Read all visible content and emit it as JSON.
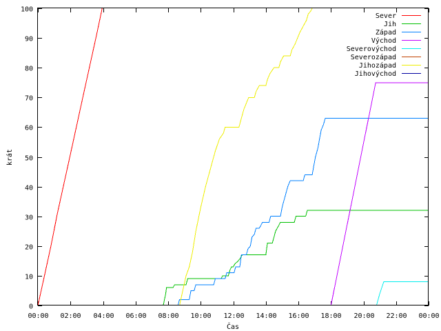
{
  "chart_data": {
    "type": "line",
    "title": "",
    "xlabel": "Čas",
    "ylabel": "krát",
    "xlim": [
      0,
      24
    ],
    "ylim": [
      0,
      100
    ],
    "x_unit": "hours",
    "x_ticks": [
      0,
      2,
      4,
      6,
      8,
      10,
      12,
      14,
      16,
      18,
      20,
      22,
      24
    ],
    "x_tick_labels": [
      "00:00",
      "02:00",
      "04:00",
      "06:00",
      "08:00",
      "10:00",
      "12:00",
      "14:00",
      "16:00",
      "18:00",
      "20:00",
      "22:00",
      "00:00"
    ],
    "y_ticks": [
      0,
      10,
      20,
      30,
      40,
      50,
      60,
      70,
      80,
      90,
      100
    ],
    "grid": false,
    "legend_position": "top-right",
    "series": [
      {
        "name": "Sever",
        "color": "#ff0000",
        "points": [
          [
            0,
            0
          ],
          [
            0.4,
            10
          ],
          [
            0.8,
            20
          ],
          [
            1.2,
            31
          ],
          [
            1.6,
            41
          ],
          [
            2.0,
            51
          ],
          [
            2.4,
            61
          ],
          [
            2.8,
            71
          ],
          [
            3.2,
            81
          ],
          [
            3.6,
            91
          ],
          [
            3.95,
            100
          ]
        ]
      },
      {
        "name": "Jih",
        "color": "#00c000",
        "points": [
          [
            7.7,
            0
          ],
          [
            7.85,
            4
          ],
          [
            7.9,
            6
          ],
          [
            8.3,
            6
          ],
          [
            8.4,
            7
          ],
          [
            9.1,
            7
          ],
          [
            9.2,
            9
          ],
          [
            11.25,
            9
          ],
          [
            11.35,
            10
          ],
          [
            11.7,
            10
          ],
          [
            11.8,
            12
          ],
          [
            11.9,
            13
          ],
          [
            12.0,
            13
          ],
          [
            12.1,
            14
          ],
          [
            12.3,
            15
          ],
          [
            12.45,
            16
          ],
          [
            12.55,
            17
          ],
          [
            14.0,
            17
          ],
          [
            14.1,
            21
          ],
          [
            14.4,
            21
          ],
          [
            14.5,
            23
          ],
          [
            14.6,
            25
          ],
          [
            14.7,
            26
          ],
          [
            14.8,
            27
          ],
          [
            14.9,
            28
          ],
          [
            15.75,
            28
          ],
          [
            15.85,
            30
          ],
          [
            16.45,
            30
          ],
          [
            16.55,
            32
          ],
          [
            24,
            32
          ]
        ]
      },
      {
        "name": "Západ",
        "color": "#0080ff",
        "points": [
          [
            8.6,
            0
          ],
          [
            8.7,
            2
          ],
          [
            9.3,
            2
          ],
          [
            9.4,
            5
          ],
          [
            9.6,
            5
          ],
          [
            9.7,
            7
          ],
          [
            10.8,
            7
          ],
          [
            10.9,
            9
          ],
          [
            11.5,
            9
          ],
          [
            11.6,
            11
          ],
          [
            12.05,
            11
          ],
          [
            12.15,
            13
          ],
          [
            12.4,
            13
          ],
          [
            12.5,
            17
          ],
          [
            12.8,
            17
          ],
          [
            12.9,
            19
          ],
          [
            13.05,
            20
          ],
          [
            13.15,
            23
          ],
          [
            13.3,
            24
          ],
          [
            13.4,
            26
          ],
          [
            13.6,
            26
          ],
          [
            13.7,
            27
          ],
          [
            13.8,
            28
          ],
          [
            14.2,
            28
          ],
          [
            14.3,
            30
          ],
          [
            14.9,
            30
          ],
          [
            15.0,
            33
          ],
          [
            15.1,
            35
          ],
          [
            15.2,
            37
          ],
          [
            15.35,
            40
          ],
          [
            15.5,
            42
          ],
          [
            16.3,
            42
          ],
          [
            16.4,
            44
          ],
          [
            16.85,
            44
          ],
          [
            16.95,
            47
          ],
          [
            17.05,
            50
          ],
          [
            17.2,
            53
          ],
          [
            17.3,
            56
          ],
          [
            17.4,
            59
          ],
          [
            17.55,
            61
          ],
          [
            17.65,
            63
          ],
          [
            24,
            63
          ]
        ]
      },
      {
        "name": "Východ",
        "color": "#c000ff",
        "points": [
          [
            18.0,
            0
          ],
          [
            20.75,
            75
          ],
          [
            24,
            75
          ]
        ]
      },
      {
        "name": "Severovýchod",
        "color": "#00eeee",
        "points": [
          [
            20.8,
            0
          ],
          [
            21.0,
            4
          ],
          [
            21.25,
            8
          ],
          [
            24,
            8
          ]
        ]
      },
      {
        "name": "Severozápad",
        "color": "#c04000",
        "points": []
      },
      {
        "name": "Jihozápad",
        "color": "#eeee00",
        "points": [
          [
            8.7,
            0
          ],
          [
            9.1,
            10
          ],
          [
            9.3,
            13
          ],
          [
            9.5,
            18
          ],
          [
            9.7,
            25
          ],
          [
            10.0,
            33
          ],
          [
            10.3,
            40
          ],
          [
            10.6,
            46
          ],
          [
            10.9,
            52
          ],
          [
            11.15,
            56
          ],
          [
            11.4,
            58
          ],
          [
            11.5,
            60
          ],
          [
            12.35,
            60
          ],
          [
            12.45,
            62
          ],
          [
            12.55,
            64
          ],
          [
            12.65,
            66
          ],
          [
            12.8,
            68
          ],
          [
            12.95,
            70
          ],
          [
            13.3,
            70
          ],
          [
            13.4,
            72
          ],
          [
            13.6,
            74
          ],
          [
            14.0,
            74
          ],
          [
            14.1,
            76
          ],
          [
            14.25,
            78
          ],
          [
            14.5,
            80
          ],
          [
            14.8,
            80
          ],
          [
            14.9,
            82
          ],
          [
            15.1,
            84
          ],
          [
            15.5,
            84
          ],
          [
            15.6,
            86
          ],
          [
            15.8,
            88
          ],
          [
            15.95,
            90
          ],
          [
            16.1,
            92
          ],
          [
            16.3,
            94
          ],
          [
            16.5,
            96
          ],
          [
            16.6,
            98
          ],
          [
            16.75,
            99
          ],
          [
            16.85,
            100
          ]
        ]
      },
      {
        "name": "Jihovýchod",
        "color": "#0000a0",
        "points": []
      }
    ]
  }
}
